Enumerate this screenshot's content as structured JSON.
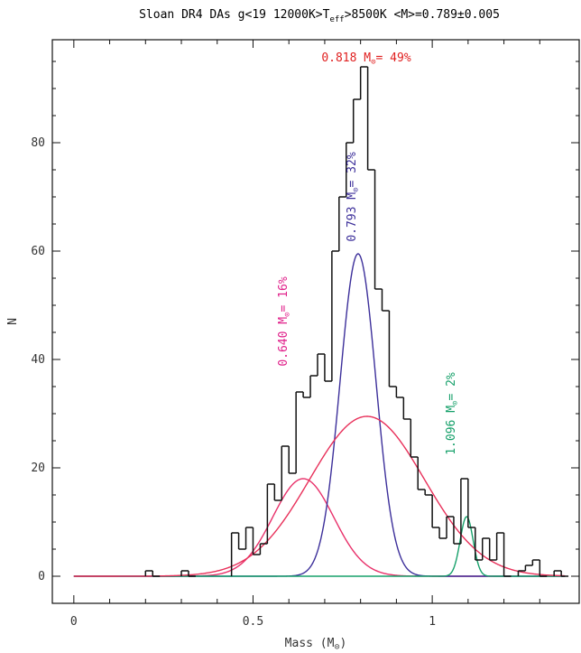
{
  "colors": {
    "histogram": "#111111",
    "total_gaussian": "#e8305a",
    "gauss_low": "#e8306a",
    "gauss_main": "#3c2f9a",
    "gauss_high": "#16a06a",
    "annot_red": "#e02020",
    "annot_pink": "#e0208a",
    "annot_purple": "#3c2f9a",
    "annot_green": "#16a06a",
    "xtick_color": "#8a2a2a"
  },
  "chart_data": {
    "type": "line",
    "title_parts": {
      "pre": "Sloan DR4 DAs g<19 12000K>T",
      "sub": "eff",
      "post": ">8500K <M>=0.789±0.005"
    },
    "xlabel_parts": {
      "pre": "Mass (M",
      "sub": "⊙",
      "post": ")"
    },
    "ylabel": "N",
    "xlim": [
      -0.06,
      1.41
    ],
    "ylim": [
      -5,
      99
    ],
    "xticks": [
      {
        "value": 0,
        "label": "0"
      },
      {
        "value": 0.5,
        "label": "0.5"
      },
      {
        "value": 1,
        "label": "1"
      }
    ],
    "yticks": [
      {
        "value": 0,
        "label": "0"
      },
      {
        "value": 20,
        "label": "20"
      },
      {
        "value": 40,
        "label": "40"
      },
      {
        "value": 60,
        "label": "60"
      },
      {
        "value": 80,
        "label": "80"
      }
    ],
    "histogram": {
      "bin_width": 0.02,
      "bins": [
        [
          0.2,
          1
        ],
        [
          0.22,
          0
        ],
        [
          0.3,
          1
        ],
        [
          0.32,
          0
        ],
        [
          0.44,
          8
        ],
        [
          0.46,
          5
        ],
        [
          0.48,
          9
        ],
        [
          0.5,
          4
        ],
        [
          0.52,
          6
        ],
        [
          0.54,
          17
        ],
        [
          0.56,
          14
        ],
        [
          0.58,
          24
        ],
        [
          0.6,
          19
        ],
        [
          0.62,
          34
        ],
        [
          0.64,
          33
        ],
        [
          0.66,
          37
        ],
        [
          0.68,
          41
        ],
        [
          0.7,
          36
        ],
        [
          0.72,
          60
        ],
        [
          0.74,
          70
        ],
        [
          0.76,
          80
        ],
        [
          0.78,
          88
        ],
        [
          0.8,
          94
        ],
        [
          0.82,
          75
        ],
        [
          0.84,
          53
        ],
        [
          0.86,
          49
        ],
        [
          0.88,
          35
        ],
        [
          0.9,
          33
        ],
        [
          0.92,
          29
        ],
        [
          0.94,
          22
        ],
        [
          0.96,
          16
        ],
        [
          0.98,
          15
        ],
        [
          1.0,
          9
        ],
        [
          1.02,
          7
        ],
        [
          1.04,
          11
        ],
        [
          1.06,
          6
        ],
        [
          1.08,
          18
        ],
        [
          1.1,
          9
        ],
        [
          1.12,
          3
        ],
        [
          1.14,
          7
        ],
        [
          1.16,
          3
        ],
        [
          1.18,
          8
        ],
        [
          1.2,
          0
        ],
        [
          1.24,
          1
        ],
        [
          1.26,
          2
        ],
        [
          1.28,
          3
        ],
        [
          1.3,
          0
        ],
        [
          1.34,
          1
        ],
        [
          1.36,
          0
        ]
      ]
    },
    "gaussians": [
      {
        "key": "gauss_low",
        "mean": 0.64,
        "amplitude": 18,
        "sigma": 0.085
      },
      {
        "key": "gauss_main",
        "mean": 0.793,
        "amplitude": 59.5,
        "sigma": 0.05
      },
      {
        "key": "gauss_high",
        "mean": 1.096,
        "amplitude": 11,
        "sigma": 0.018
      },
      {
        "key": "total_gaussian",
        "mean": 0.818,
        "amplitude": 29.5,
        "sigma": 0.16
      }
    ],
    "annotations": [
      {
        "key": "annot_red",
        "pre": "0.818 M",
        "sub": "⊙",
        "post": "= 49%"
      },
      {
        "key": "annot_purple",
        "pre": "0.793 M",
        "sub": "⊙",
        "post": "= 32%"
      },
      {
        "key": "annot_pink",
        "pre": "0.640 M",
        "sub": "⊙",
        "post": "= 16%"
      },
      {
        "key": "annot_green",
        "pre": "1.096 M",
        "sub": "⊙",
        "post": "= 2%"
      }
    ]
  }
}
